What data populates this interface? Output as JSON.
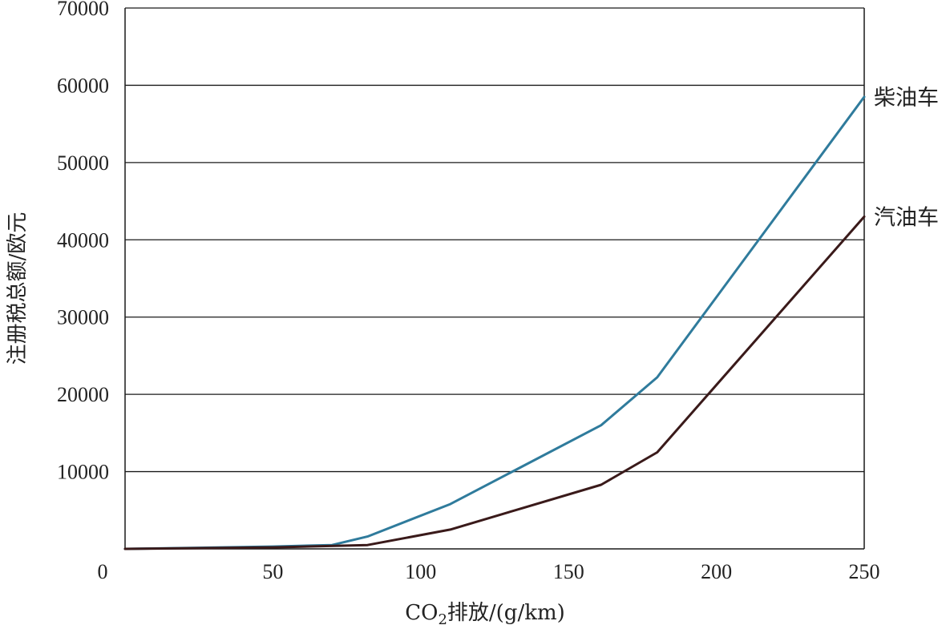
{
  "chart_data": {
    "type": "line",
    "xlabel_main": "CO",
    "xlabel_sub": "2",
    "xlabel_rest": "排放/(g/km)",
    "ylabel": "注册税总额/欧元",
    "xlim": [
      0,
      250
    ],
    "ylim": [
      0,
      70000
    ],
    "x_ticks": [
      0,
      50,
      100,
      150,
      200,
      250
    ],
    "y_ticks": [
      10000,
      20000,
      30000,
      40000,
      50000,
      60000,
      70000
    ],
    "grid": "horizontal",
    "legend": "inline labels at line ends (right)",
    "series": [
      {
        "name": "柴油车",
        "color": "#2f7b9c",
        "points": [
          [
            0,
            0
          ],
          [
            50,
            300
          ],
          [
            70,
            500
          ],
          [
            82,
            1600
          ],
          [
            110,
            5800
          ],
          [
            161,
            16000
          ],
          [
            180,
            22200
          ],
          [
            250,
            58500
          ]
        ]
      },
      {
        "name": "汽油车",
        "color": "#3a1a1a",
        "points": [
          [
            0,
            0
          ],
          [
            50,
            200
          ],
          [
            82,
            500
          ],
          [
            110,
            2500
          ],
          [
            161,
            8300
          ],
          [
            180,
            12500
          ],
          [
            250,
            43000
          ]
        ]
      }
    ]
  }
}
